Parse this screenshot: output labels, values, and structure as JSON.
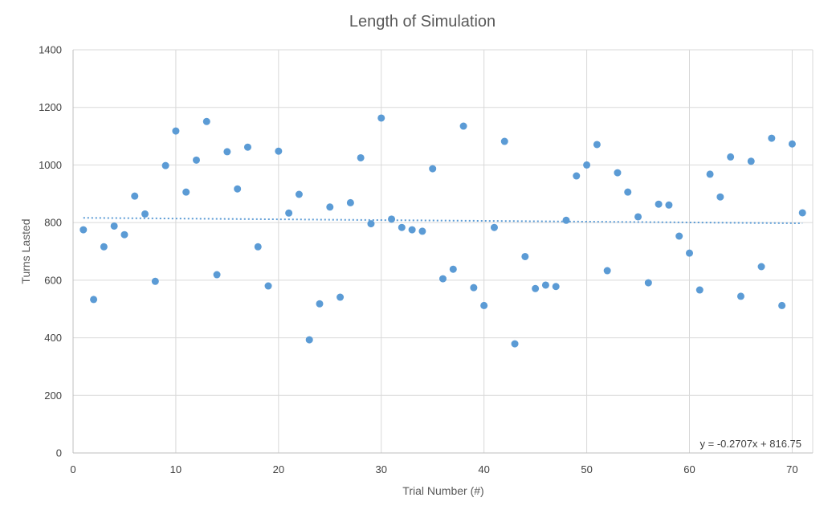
{
  "chart_data": {
    "type": "scatter",
    "title": "Length of Simulation",
    "xlabel": "Trial Number (#)",
    "ylabel": "Turns Lasted",
    "xlim": [
      0,
      72
    ],
    "ylim": [
      0,
      1400
    ],
    "x_ticks": [
      0,
      10,
      20,
      30,
      40,
      50,
      60,
      70
    ],
    "y_ticks": [
      0,
      200,
      400,
      600,
      800,
      1000,
      1200,
      1400
    ],
    "grid": true,
    "series": [
      {
        "name": "Turns Lasted",
        "color": "#5b9bd5",
        "x": [
          1,
          2,
          3,
          4,
          5,
          6,
          7,
          8,
          9,
          10,
          11,
          12,
          13,
          14,
          15,
          16,
          17,
          18,
          19,
          20,
          21,
          22,
          23,
          24,
          25,
          26,
          27,
          28,
          29,
          30,
          31,
          32,
          33,
          34,
          35,
          36,
          37,
          38,
          39,
          40,
          41,
          42,
          43,
          44,
          45,
          46,
          47,
          48,
          49,
          50,
          51,
          52,
          53,
          54,
          55,
          56,
          57,
          58,
          59,
          60,
          61,
          62,
          63,
          64,
          65,
          66,
          67,
          68,
          69,
          70,
          71
        ],
        "y": [
          775,
          533,
          716,
          788,
          758,
          892,
          830,
          596,
          998,
          1118,
          906,
          1017,
          1151,
          619,
          1046,
          917,
          1062,
          716,
          580,
          1048,
          833,
          898,
          393,
          518,
          854,
          541,
          869,
          1025,
          796,
          1163,
          812,
          783,
          775,
          770,
          987,
          605,
          638,
          1135,
          574,
          512,
          783,
          1082,
          379,
          682,
          571,
          583,
          578,
          808,
          962,
          1000,
          1071,
          633,
          973,
          906,
          820,
          591,
          864,
          861,
          753,
          694,
          566,
          968,
          889,
          1028,
          544,
          1013,
          647,
          1093,
          512,
          1073,
          834
        ]
      }
    ],
    "trendline": {
      "type": "linear",
      "slope": -0.2707,
      "intercept": 816.75,
      "x_range": [
        1,
        71
      ],
      "equation": "y = -0.2707x + 816.75",
      "color": "#5b9bd5"
    }
  }
}
